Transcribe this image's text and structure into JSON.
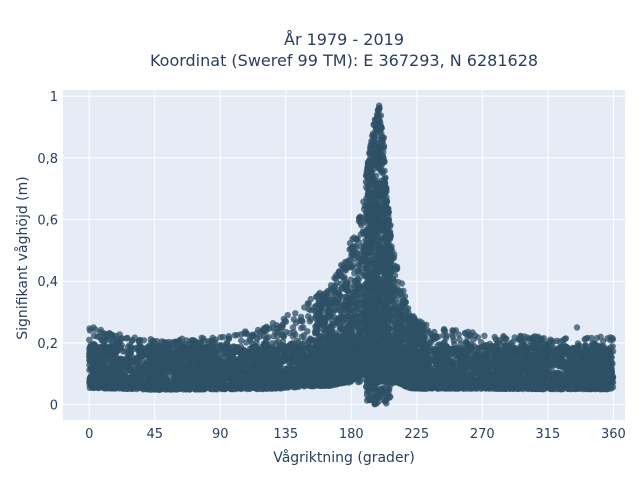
{
  "chart_data": {
    "type": "scatter",
    "title": [
      "År 1979 - 2019",
      "Koordinat (Sweref 99 TM): E 367293, N 6281628"
    ],
    "xlabel": "Vågriktning (grader)",
    "ylabel": "Signifikant våghöjd (m)",
    "xlim": [
      -18,
      368
    ],
    "ylim": [
      -0.05,
      1.02
    ],
    "x_ticks": [
      0,
      45,
      90,
      135,
      180,
      225,
      270,
      315,
      360
    ],
    "x_tick_labels": [
      "0",
      "45",
      "90",
      "135",
      "180",
      "225",
      "270",
      "315",
      "360"
    ],
    "y_ticks": [
      0,
      0.2,
      0.4,
      0.6,
      0.8,
      1
    ],
    "y_tick_labels": [
      "0",
      "0,2",
      "0,4",
      "0,6",
      "0,8",
      "1"
    ],
    "grid": true,
    "legend": false,
    "colors": {
      "marker": "#2e5066",
      "plot_bg": "#e5ecf6",
      "grid": "#ffffff",
      "text": "#2a3f5f"
    },
    "envelope": {
      "x": [
        0,
        45,
        90,
        120,
        135,
        150,
        165,
        175,
        185,
        190,
        195,
        198,
        200,
        202,
        205,
        210,
        220,
        230,
        270,
        315,
        360
      ],
      "y_min": [
        0.02,
        0.02,
        0.02,
        0.015,
        0.01,
        0.01,
        0.005,
        0.0,
        0.0,
        0.0,
        0.0,
        0.0,
        0.0,
        0.0,
        0.0,
        0.005,
        0.01,
        0.015,
        0.02,
        0.02,
        0.02
      ],
      "y_max": [
        0.25,
        0.21,
        0.22,
        0.25,
        0.3,
        0.34,
        0.38,
        0.47,
        0.6,
        0.75,
        0.9,
        0.96,
        0.98,
        0.9,
        0.65,
        0.48,
        0.3,
        0.26,
        0.23,
        0.22,
        0.22
      ]
    },
    "outliers": [
      {
        "x": 3,
        "y": 0.25
      },
      {
        "x": 335,
        "y": 0.25
      },
      {
        "x": 0,
        "y": 0.21
      }
    ]
  }
}
